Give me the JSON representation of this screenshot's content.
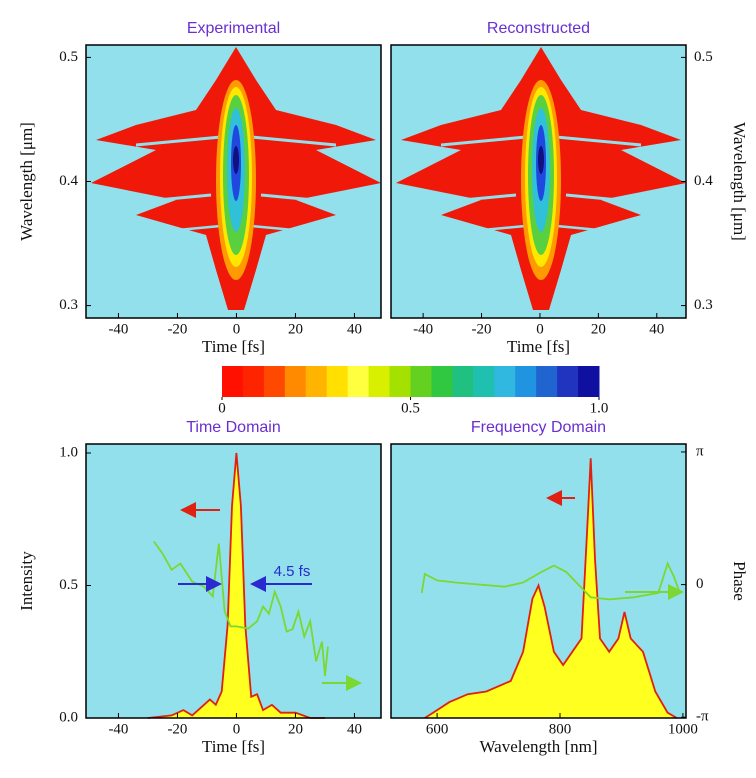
{
  "chart_data": [
    {
      "type": "heatmap",
      "title": "Experimental",
      "xlabel": "Time [fs]",
      "ylabel": "Wavelength [μm]",
      "xlim": [
        -51,
        49
      ],
      "ylim": [
        0.29,
        0.51
      ],
      "xticks": [
        -40,
        -20,
        0,
        20,
        40
      ],
      "yticks": [
        0.3,
        0.4,
        0.5
      ],
      "y_axis": "left"
    },
    {
      "type": "heatmap",
      "title": "Reconstructed",
      "xlabel": "Time [fs]",
      "ylabel": "Wavelength [μm]",
      "xlim": [
        -51,
        50
      ],
      "ylim": [
        0.29,
        0.51
      ],
      "xticks": [
        -40,
        -20,
        0,
        20,
        40
      ],
      "yticks": [
        0.3,
        0.4,
        0.5
      ],
      "y_axis": "right"
    },
    {
      "type": "colorbar",
      "clim": [
        0,
        1
      ],
      "ticks": [
        0,
        0.5,
        {
          "value": 1,
          "label": "1.0"
        }
      ],
      "colors": [
        "#ff1000",
        "#ff2400",
        "#ff4800",
        "#ff8a00",
        "#ffb400",
        "#ffe000",
        "#ffff40",
        "#d8f000",
        "#a4e000",
        "#64d020",
        "#30c840",
        "#20c080",
        "#20c0b0",
        "#30b8e0",
        "#2094e0",
        "#2064d0",
        "#2034c0",
        "#1010a0"
      ]
    },
    {
      "type": "line",
      "title": "Time Domain",
      "xlabel": "Time [fs]",
      "ylabel": "Intensity",
      "xlim": [
        -51,
        49
      ],
      "ylim": [
        0,
        1.034
      ],
      "y2lim": [
        -3.16,
        3.33
      ],
      "xticks": [
        -40,
        -20,
        0,
        20,
        40
      ],
      "yticks": [
        {
          "value": 0,
          "label": "0.0"
        },
        0.5,
        {
          "value": 1,
          "label": "1.0"
        }
      ],
      "y_axis": "left",
      "annotations": [
        "4.5 fs"
      ],
      "series": [
        {
          "color": "#e02010",
          "fill": "#ffff20",
          "x": [
            -30,
            -22,
            -18,
            -15,
            -12,
            -9,
            -7,
            -5,
            -3,
            -1.5,
            0,
            1.5,
            3,
            5,
            7,
            9,
            12,
            15,
            20,
            25,
            30
          ],
          "values": [
            0,
            0.01,
            0.03,
            0.01,
            0.04,
            0.07,
            0.05,
            0.1,
            0.35,
            0.8,
            1.0,
            0.8,
            0.35,
            0.08,
            0.09,
            0.03,
            0.05,
            0.02,
            0.02,
            0,
            0
          ]
        },
        {
          "color": "#7ad830",
          "axis": "y2",
          "x": [
            -28,
            -25,
            -22,
            -19,
            -15,
            -11,
            -8,
            -6,
            -4,
            -2,
            0,
            4,
            7,
            9,
            11,
            13,
            15,
            17,
            19,
            21,
            23,
            25,
            27,
            29,
            30,
            31
          ],
          "values": [
            1.02,
            0.73,
            0.35,
            0.5,
            0.07,
            -0.05,
            -0.28,
            0.97,
            -0.64,
            -0.99,
            -0.99,
            -1.04,
            -0.87,
            -0.52,
            -0.69,
            -0.17,
            -0.52,
            -1.11,
            -1.06,
            -0.64,
            -1.23,
            -0.87,
            -1.82,
            -1.35,
            -2.17,
            -1.47
          ]
        }
      ]
    },
    {
      "type": "line",
      "title": "Frequency Domain",
      "xlabel": "Wavelength [nm]",
      "y2label": "Phase",
      "xlim": [
        525,
        1005
      ],
      "ylim": [
        0,
        1.034
      ],
      "y2lim": [
        -3.16,
        3.33
      ],
      "xticks": [
        600,
        800,
        1000
      ],
      "y2ticks": [
        {
          "value": -3.14159,
          "label": "-π"
        },
        0,
        {
          "value": 3.14159,
          "label": "π"
        }
      ],
      "y_axis": "none",
      "series": [
        {
          "color": "#e02010",
          "fill": "#ffff20",
          "x": [
            580,
            600,
            620,
            650,
            680,
            720,
            740,
            755,
            765,
            775,
            790,
            805,
            820,
            835,
            845,
            850,
            857,
            865,
            880,
            895,
            905,
            915,
            935,
            955,
            975,
            990
          ],
          "values": [
            0,
            0.03,
            0.06,
            0.09,
            0.1,
            0.14,
            0.25,
            0.45,
            0.5,
            0.42,
            0.25,
            0.2,
            0.25,
            0.3,
            0.75,
            0.98,
            0.6,
            0.3,
            0.25,
            0.3,
            0.4,
            0.3,
            0.25,
            0.1,
            0.02,
            0
          ]
        },
        {
          "color": "#7ad830",
          "axis": "y2",
          "x": [
            575,
            580,
            600,
            630,
            670,
            710,
            740,
            770,
            790,
            810,
            830,
            850,
            880,
            920,
            960,
            975,
            985,
            995
          ],
          "values": [
            -0.2,
            0.25,
            0.1,
            0.05,
            0,
            -0.05,
            0.05,
            0.3,
            0.45,
            0.3,
            0,
            -0.3,
            -0.35,
            -0.3,
            -0.2,
            0.5,
            0.2,
            -0.2
          ]
        }
      ]
    }
  ]
}
